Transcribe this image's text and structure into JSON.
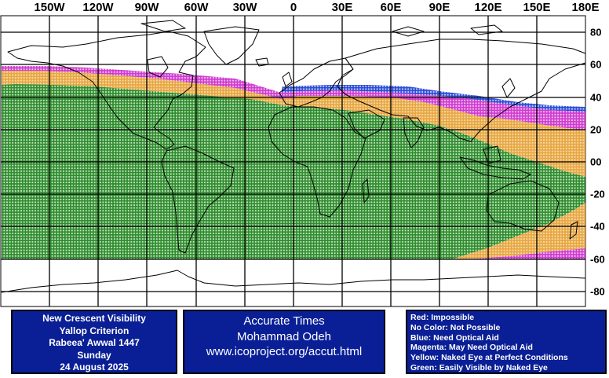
{
  "map": {
    "lon_labels": [
      "150W",
      "120W",
      "90W",
      "60W",
      "30W",
      "0",
      "30E",
      "60E",
      "90E",
      "120E",
      "150E",
      "180E"
    ],
    "lat_labels": [
      "80",
      "60",
      "40",
      "20",
      "00",
      "-20",
      "-40",
      "-60",
      "-80"
    ],
    "colors": {
      "green": "#2e8b2e",
      "green_fill": "#c9e6c3",
      "yellow": "#e8a640",
      "yellow_fill": "#f6ddb0",
      "magenta": "#d03ad0",
      "magenta_fill": "#f1c6f1",
      "blue": "#2a4bd8",
      "blue_fill": "#c9d2f4",
      "grid": "#000000",
      "coast": "#000000"
    }
  },
  "info_left": {
    "line1": "New Crescent Visibility",
    "line2": "Yallop Criterion",
    "line3": "Rabeea' Awwal 1447",
    "line4": "Sunday",
    "line5": "24 August 2025"
  },
  "info_center": {
    "line1": "Accurate Times",
    "line2": "Mohammad Odeh",
    "line3": "www.icoproject.org/accut.html"
  },
  "legend": {
    "red": "Red: Impossible",
    "none": "No Color: Not Possible",
    "blue": "Blue: Need Optical Aid",
    "magenta": "Magenta: May Need Optical Aid",
    "yellow": "Yellow: Naked Eye at Perfect Conditions",
    "green": "Green: Easily Visible by Naked Eye"
  }
}
